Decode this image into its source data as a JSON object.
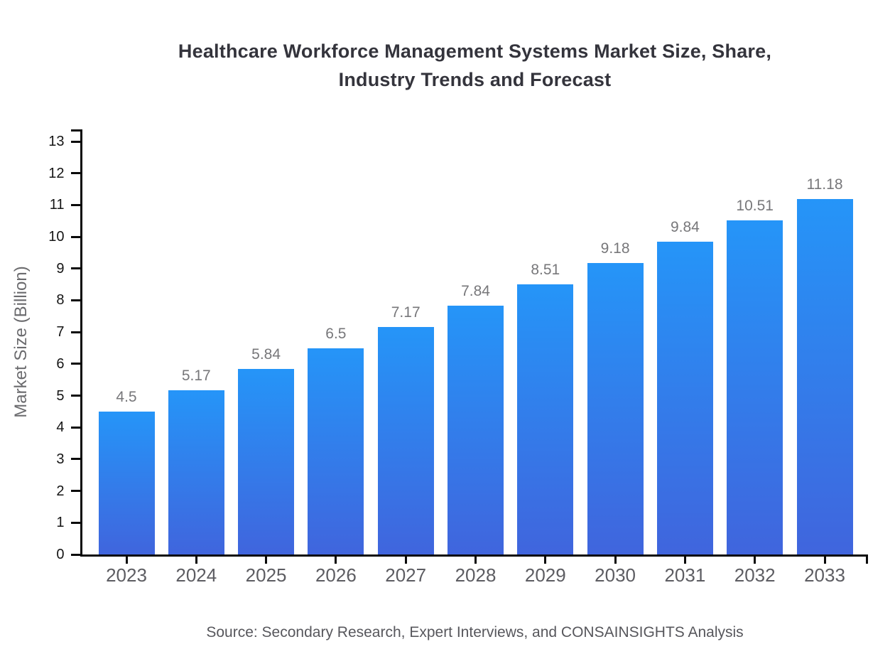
{
  "title": {
    "line1": "Healthcare Workforce Management Systems Market Size, Share,",
    "line2": "Industry Trends and Forecast"
  },
  "source_note": "Source: Secondary Research, Expert Interviews, and CONSAINSIGHTS Analysis",
  "chart_data": {
    "type": "bar",
    "title": "Healthcare Workforce Management Systems Market Size, Share, Industry Trends and Forecast",
    "categories": [
      "2023",
      "2024",
      "2025",
      "2026",
      "2027",
      "2028",
      "2029",
      "2030",
      "2031",
      "2032",
      "2033"
    ],
    "values": [
      4.5,
      5.17,
      5.84,
      6.5,
      7.17,
      7.84,
      8.51,
      9.18,
      9.84,
      10.51,
      11.18
    ],
    "xlabel": "",
    "ylabel": "Market Size (Billion)",
    "ylim": [
      0,
      13
    ],
    "ytick_interval": 1,
    "grid": false,
    "legend": null,
    "colors": {
      "bar_gradient_top": "#2595f8",
      "bar_gradient_bottom": "#4065dd",
      "axis": "#0a0a0a",
      "title_text": "#34343c",
      "y_tick_label": "#151515",
      "category_label": "#5d5d62",
      "value_label": "#77777a",
      "axis_title": "#6b6b6e",
      "source_text": "#57575c",
      "background": "#ffffff"
    }
  }
}
